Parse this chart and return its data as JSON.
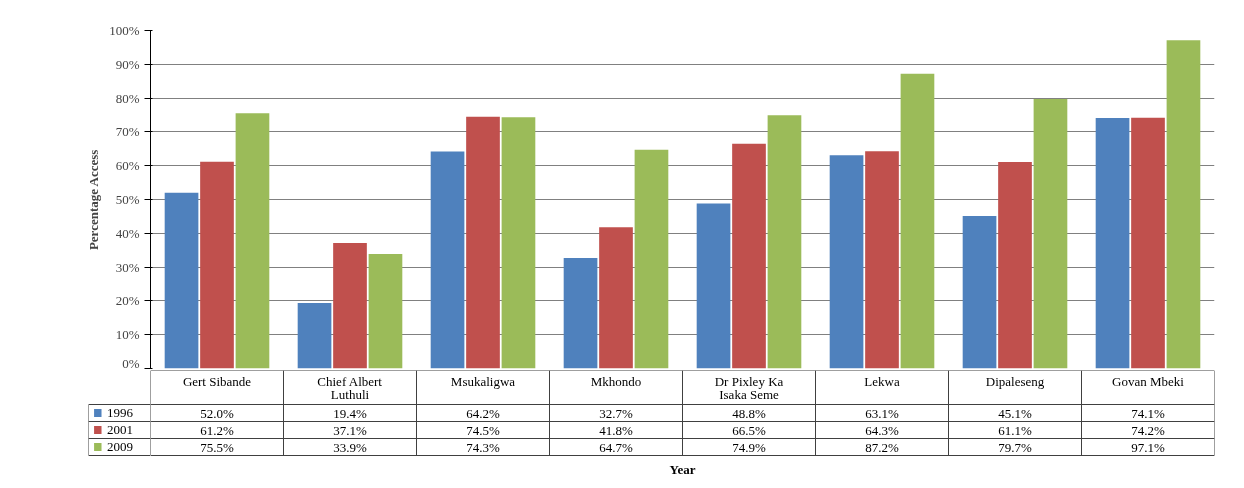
{
  "chart_data": {
    "type": "bar",
    "xlabel": "Year",
    "ylabel": "Percentage Access",
    "categories": [
      "Gert Sibande",
      "Chief Albert Luthuli",
      "Msukaligwa",
      "Mkhondo",
      "Dr Pixley Ka Isaka Seme",
      "Lekwa",
      "Dipaleseng",
      "Govan Mbeki"
    ],
    "series": [
      {
        "name": "1996",
        "color": "#4f81bd",
        "values": [
          52.0,
          19.4,
          64.2,
          32.7,
          48.8,
          63.1,
          45.1,
          74.1
        ],
        "value_labels": [
          "52.0%",
          "19.4%",
          "64.2%",
          "32.7%",
          "48.8%",
          "63.1%",
          "45.1%",
          "74.1%"
        ]
      },
      {
        "name": "2001",
        "color": "#c0504d",
        "values": [
          61.2,
          37.1,
          74.5,
          41.8,
          66.5,
          64.3,
          61.1,
          74.2
        ],
        "value_labels": [
          "61.2%",
          "37.1%",
          "74.5%",
          "41.8%",
          "66.5%",
          "64.3%",
          "61.1%",
          "74.2%"
        ]
      },
      {
        "name": "2009",
        "color": "#9bbb59",
        "values": [
          75.5,
          33.9,
          74.3,
          64.7,
          74.9,
          87.2,
          79.7,
          97.1
        ],
        "value_labels": [
          "75.5%",
          "33.9%",
          "74.3%",
          "64.7%",
          "74.9%",
          "87.2%",
          "79.7%",
          "97.1%"
        ]
      }
    ],
    "ylim": [
      0,
      100
    ],
    "yticks": [
      {
        "value": 0,
        "label": "0%"
      },
      {
        "value": 10,
        "label": "10%"
      },
      {
        "value": 20,
        "label": "20%"
      },
      {
        "value": 30,
        "label": "30%"
      },
      {
        "value": 40,
        "label": "40%"
      },
      {
        "value": 50,
        "label": "50%"
      },
      {
        "value": 60,
        "label": "60%"
      },
      {
        "value": 70,
        "label": "70%"
      },
      {
        "value": 80,
        "label": "80%"
      },
      {
        "value": 90,
        "label": "90%"
      },
      {
        "value": 100,
        "label": "100%"
      }
    ],
    "grid": "y",
    "legend": "bottom"
  }
}
